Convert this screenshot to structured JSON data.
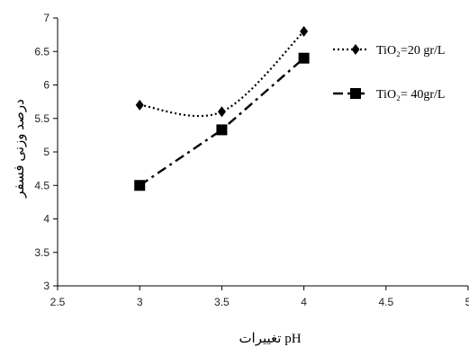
{
  "chart_data": {
    "type": "line",
    "xlabel": "تغییرات pH",
    "ylabel": "درصد وزنی فسفر",
    "xlim": [
      2.5,
      5
    ],
    "ylim": [
      3,
      7
    ],
    "x_ticks": [
      "2.5",
      "3",
      "3.5",
      "4",
      "4.5",
      "5"
    ],
    "y_ticks": [
      "3",
      "3.5",
      "4",
      "4.5",
      "5",
      "5.5",
      "6",
      "6.5",
      "7"
    ],
    "grid": false,
    "legend_position": "top-right",
    "series": [
      {
        "name": "TiO₂=20 gr/L",
        "marker": "diamond",
        "line_style": "dotted",
        "x": [
          3,
          3.5,
          4
        ],
        "y": [
          5.7,
          5.6,
          6.8
        ]
      },
      {
        "name": "TiO₂= 40gr/L",
        "marker": "square",
        "line_style": "dash-dot",
        "x": [
          3,
          3.5,
          4
        ],
        "y": [
          4.5,
          5.33,
          6.4
        ]
      }
    ],
    "colors": {
      "line": "#000000",
      "axis": "#000000"
    }
  }
}
